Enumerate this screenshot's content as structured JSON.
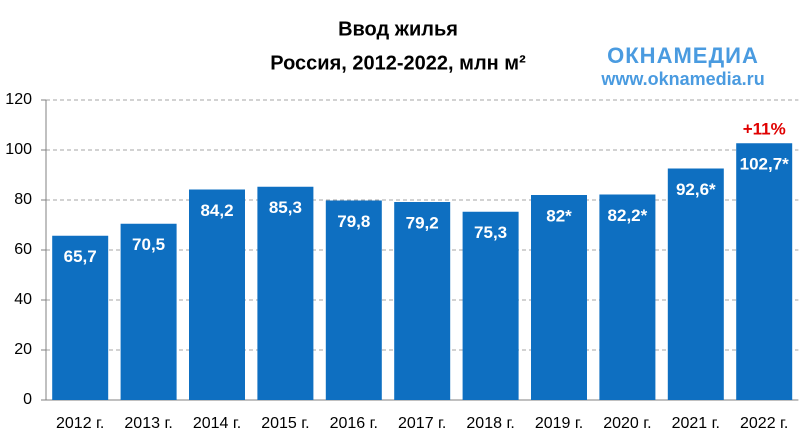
{
  "chart_data": {
    "type": "bar",
    "title": "Ввод жилья",
    "subtitle": "Россия, 2012-2022, млн м²",
    "categories": [
      "2012 г.",
      "2013 г.",
      "2014 г.",
      "2015 г.",
      "2016 г.",
      "2017 г.",
      "2018 г.",
      "2019 г.",
      "2020 г.",
      "2021 г.",
      "2022 г."
    ],
    "values": [
      65.7,
      70.5,
      84.2,
      85.3,
      79.8,
      79.2,
      75.3,
      82,
      82.2,
      92.6,
      102.7
    ],
    "value_labels": [
      "65,7",
      "70,5",
      "84,2",
      "85,3",
      "79,8",
      "79,2",
      "75,3",
      "82*",
      "82,2*",
      "92,6*",
      "102,7*"
    ],
    "color": "#0e6fc1",
    "ylim": [
      0,
      120
    ],
    "yticks": [
      0,
      20,
      40,
      60,
      80,
      100,
      120
    ],
    "grid": true,
    "annotations": [
      "+11%",
      "ОКНАМЕДИА",
      "www.oknamedia.ru"
    ]
  }
}
